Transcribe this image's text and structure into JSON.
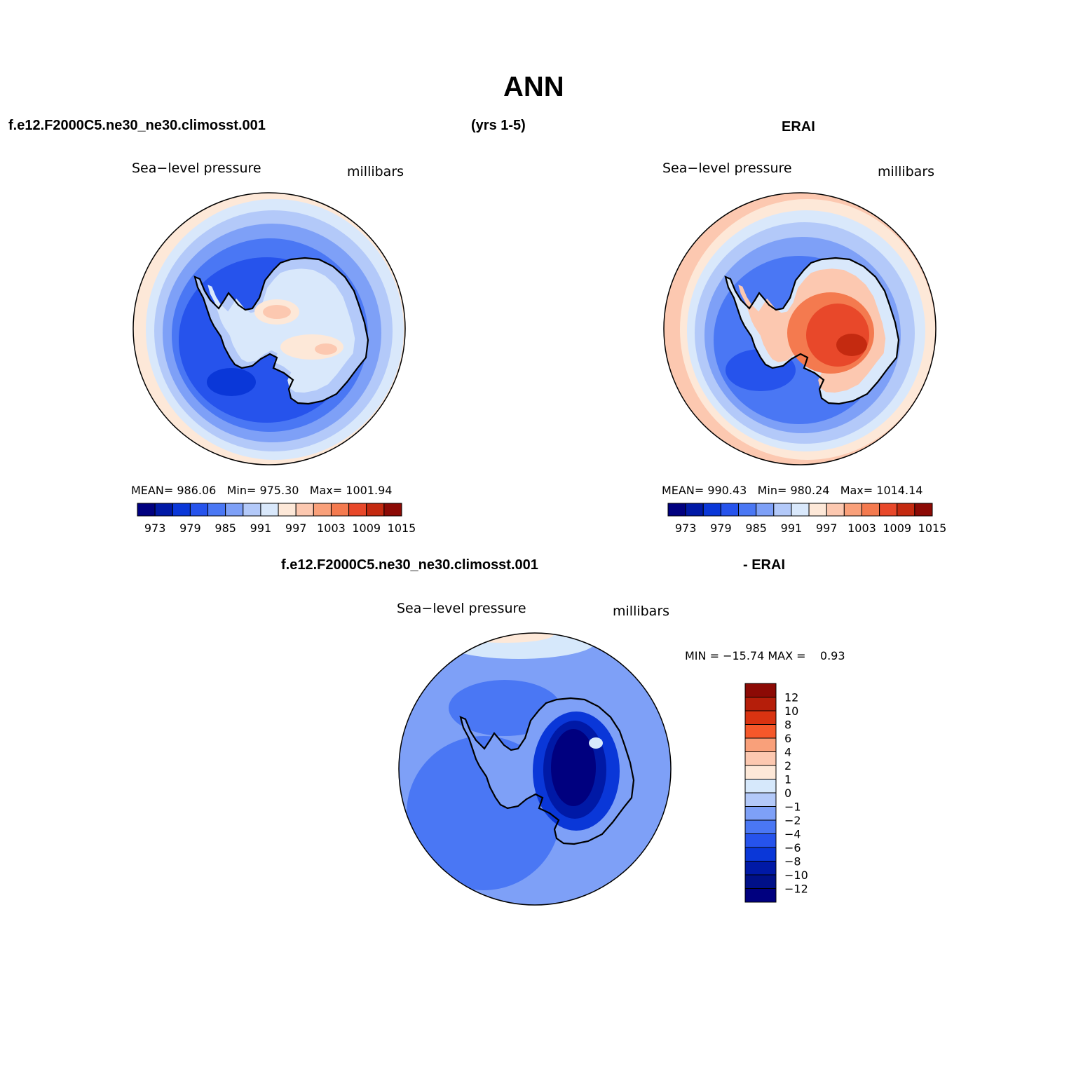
{
  "header": {
    "title": "ANN",
    "case_name": "f.e12.F2000C5.ne30_ne30.climosst.001",
    "years": "(yrs 1-5)",
    "obs_name": "ERAI",
    "diff_case_name": "f.e12.F2000C5.ne30_ne30.climosst.001",
    "diff_obs_name": "- ERAI"
  },
  "panels": [
    {
      "variable": "Sea−level pressure",
      "units": "millibars",
      "stats": "MEAN= 986.06   Min= 975.30   Max= 1001.94"
    },
    {
      "variable": "Sea−level pressure",
      "units": "millibars",
      "stats": "MEAN= 990.43   Min= 980.24   Max= 1014.14"
    },
    {
      "variable": "Sea−level pressure",
      "units": "millibars",
      "stats": "MIN = −15.74 MAX =    0.93"
    }
  ],
  "colorbar_h": {
    "colors": [
      "#00007f",
      "#0019a6",
      "#0a37d8",
      "#2653ec",
      "#4a77f4",
      "#7ea0f7",
      "#b3c9f9",
      "#d9e8fb",
      "#fde8d8",
      "#fcc8b0",
      "#f9a07a",
      "#f47a4f",
      "#e8482a",
      "#c42a10",
      "#8c0a05"
    ],
    "ticks": [
      "973",
      "979",
      "985",
      "991",
      "997",
      "1003",
      "1009",
      "1015"
    ]
  },
  "colorbar_v": {
    "colors": [
      "#8c0a05",
      "#b51e0a",
      "#d93311",
      "#f5582a",
      "#f9a07a",
      "#fcc8b0",
      "#fde8d8",
      "#d6e8fb",
      "#b3c9f9",
      "#7ea0f7",
      "#4a77f4",
      "#2653ec",
      "#0a37d8",
      "#0019a6",
      "#001088",
      "#00007f"
    ],
    "ticks": [
      "12",
      "10",
      "8",
      "6",
      "4",
      "2",
      "1",
      "0",
      "−1",
      "−2",
      "−4",
      "−6",
      "−8",
      "−10",
      "−12"
    ]
  },
  "maps": {
    "model": {
      "outer": "#fde8d8",
      "ring1": "#d9e8fb",
      "ring2": "#b3c9f9",
      "ring3": "#7ea0f7",
      "ring4": "#4a77f4",
      "core": "#2653ec",
      "low": "#0a37d8",
      "land": "#b3c9f9",
      "land_high": "#fcc8b0",
      "land_mid": "#fde8d8"
    },
    "obs": {
      "outer": "#fcc8b0",
      "ring1": "#fde8d8",
      "ring2": "#d9e8fb",
      "ring3": "#b3c9f9",
      "ring4": "#7ea0f7",
      "core": "#4a77f4",
      "low": "#2653ec",
      "land": "#d9e8fb",
      "land_high": "#f47a4f",
      "land_mid": "#e8482a"
    },
    "diff": {
      "outer": "#7ea0f7",
      "mid": "#4a77f4",
      "top": "#d6e8fb",
      "topmost": "#fde8d8",
      "land": "#7ea0f7",
      "land_low": "#0a37d8",
      "land_core": "#00007f"
    }
  }
}
